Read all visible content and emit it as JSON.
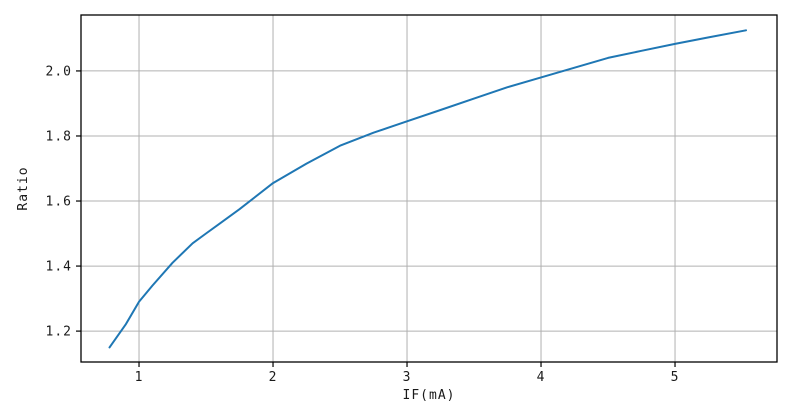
{
  "chart_data": {
    "type": "line",
    "title": "",
    "xlabel": "IF(mA)",
    "ylabel": "Ratio",
    "x": [
      0.78,
      0.9,
      1.0,
      1.1,
      1.25,
      1.4,
      1.5,
      1.6,
      1.75,
      2.0,
      2.25,
      2.5,
      2.75,
      3.0,
      3.25,
      3.5,
      3.75,
      4.0,
      4.25,
      4.5,
      4.75,
      5.0,
      5.25,
      5.53
    ],
    "y": [
      1.15,
      1.22,
      1.29,
      1.34,
      1.41,
      1.47,
      1.5,
      1.53,
      1.575,
      1.655,
      1.715,
      1.77,
      1.81,
      1.845,
      1.88,
      1.915,
      1.95,
      1.98,
      2.01,
      2.04,
      2.062,
      2.083,
      2.103,
      2.125
    ],
    "xlim": [
      0.567,
      5.761
    ],
    "ylim": [
      1.105,
      2.172
    ],
    "x_ticks": [
      1,
      2,
      3,
      4,
      5
    ],
    "x_tick_labels": [
      "1",
      "2",
      "3",
      "4",
      "5"
    ],
    "y_ticks": [
      1.2,
      1.4,
      1.6,
      1.8,
      2.0
    ],
    "y_tick_labels": [
      "1.2",
      "1.4",
      "1.6",
      "1.8",
      "2.0"
    ],
    "grid": true,
    "legend": "none",
    "line_color": "#1f77b4",
    "grid_color": "#b0b0b0",
    "spine_color": "#000000",
    "text_color": "#1a1a1a",
    "background_color": "#ffffff"
  }
}
